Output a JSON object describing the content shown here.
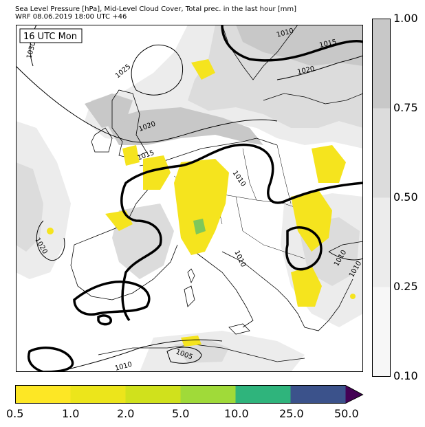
{
  "header": {
    "line1": "Sea Level Pressure [hPa], Mid-Level Cloud Cover, Total prec. in the last hour [mm]",
    "line2": "WRF 08.06.2019 18:00 UTC +46"
  },
  "map": {
    "timestamp_label": "16 UTC Mon",
    "isobar_labels": [
      "1030",
      "1025",
      "1020",
      "1015",
      "1010",
      "1010",
      "1020",
      "1015",
      "1010",
      "1020",
      "1010",
      "1010",
      "1005",
      "1010"
    ],
    "colors": {
      "cloud_high": "#c8c8c8",
      "cloud_mid": "#dcdcdc",
      "cloud_low": "#ededed",
      "precip_yellow": "#f5e41e",
      "precip_green": "#7fc85a",
      "coastline": "#000000"
    }
  },
  "cloud_colorbar": {
    "ticks": [
      "1.00",
      "0.75",
      "0.50",
      "0.25",
      "0.10"
    ],
    "colors": [
      "#c8c8c8",
      "#dcdcdc",
      "#ececec",
      "#f7f7f7"
    ]
  },
  "precip_colorbar": {
    "ticks": [
      "0.5",
      "1.0",
      "2.0",
      "5.0",
      "10.0",
      "25.0",
      "50.0"
    ],
    "colors": [
      "#fde725",
      "#ece51b",
      "#d0e11c",
      "#a0da39",
      "#2fb47c",
      "#3b528b",
      "#440154"
    ]
  }
}
